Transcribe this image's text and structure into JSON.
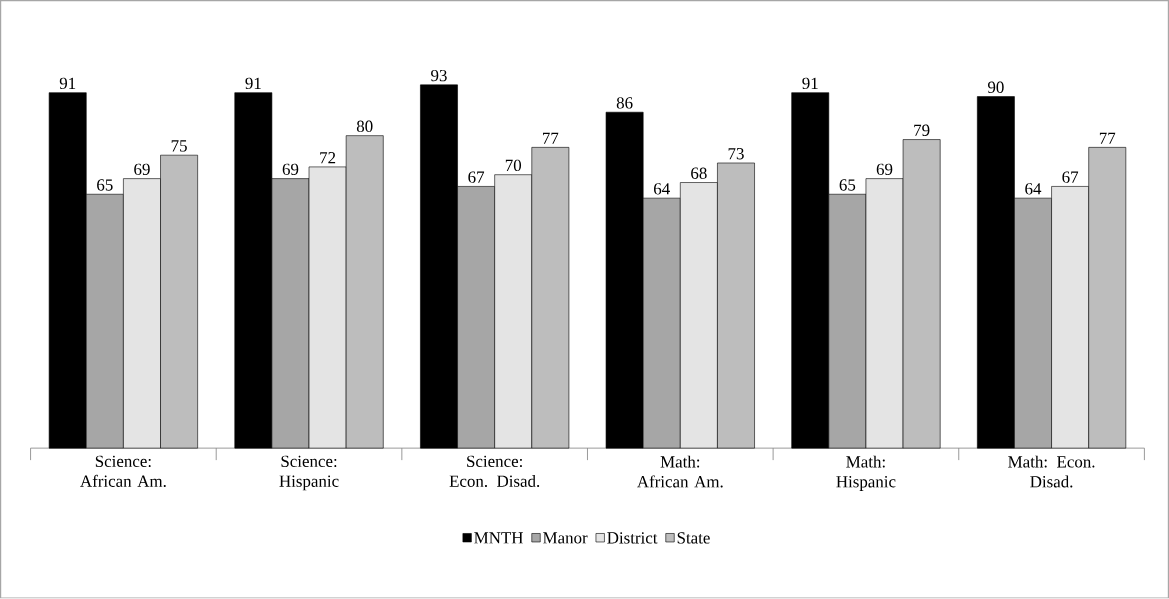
{
  "chart_data": {
    "type": "bar",
    "categories": [
      "Science: African Am.",
      "Science: Hispanic",
      "Science: Econ. Disad.",
      "Math: African Am.",
      "Math: Hispanic",
      "Math: Econ. Disad."
    ],
    "series": [
      {
        "name": "MNTH",
        "color": "#000000",
        "values": [
          91,
          91,
          93,
          86,
          91,
          90
        ]
      },
      {
        "name": "Manor",
        "color": "#a6a6a6",
        "values": [
          65,
          69,
          67,
          64,
          65,
          64
        ]
      },
      {
        "name": "District",
        "color": "#e4e4e4",
        "values": [
          69,
          72,
          70,
          68,
          69,
          67
        ]
      },
      {
        "name": "State",
        "color": "#bdbdbd",
        "values": [
          75,
          80,
          77,
          73,
          79,
          77
        ]
      }
    ],
    "data_labels": true,
    "legend": "bottom"
  }
}
